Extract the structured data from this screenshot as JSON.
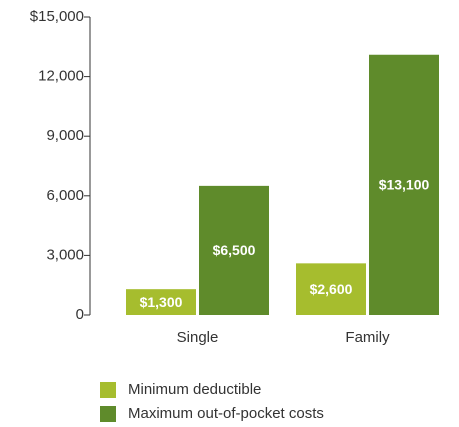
{
  "chart_data": {
    "type": "bar",
    "categories": [
      "Single",
      "Family"
    ],
    "series": [
      {
        "name": "Minimum deductible",
        "color": "#a6bd2e",
        "values": [
          1300,
          2600
        ],
        "value_labels": [
          "$1,300",
          "$2,600"
        ]
      },
      {
        "name": "Maximum out-of-pocket costs",
        "color": "#5f8b2b",
        "values": [
          6500,
          13100
        ],
        "value_labels": [
          "$6,500",
          "$13,100"
        ]
      }
    ],
    "ylim": [
      0,
      15000
    ],
    "yticks": [
      0,
      {
        "value": 3000,
        "label": "3,000"
      },
      {
        "value": 6000,
        "label": "6,000"
      },
      {
        "value": 9000,
        "label": "9,000"
      },
      {
        "value": 12000,
        "label": "12,000"
      },
      {
        "value": 15000,
        "label": "$15,000"
      }
    ],
    "grid": false
  }
}
